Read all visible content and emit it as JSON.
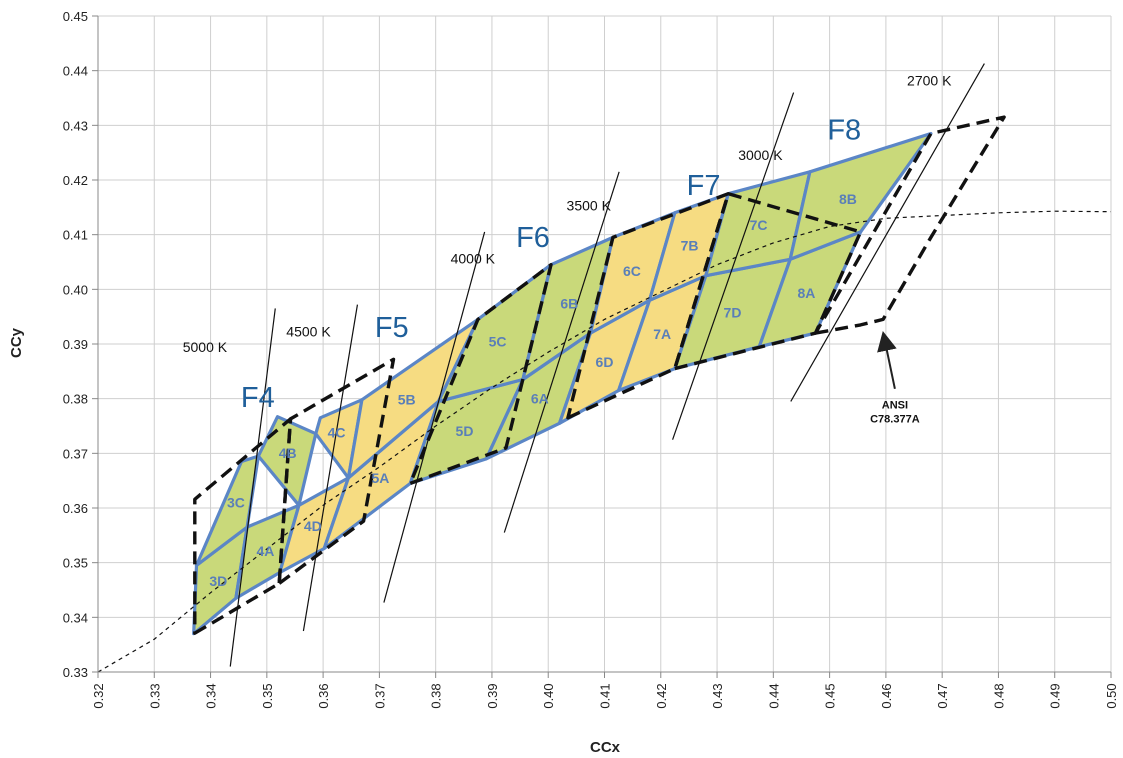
{
  "chart_data": {
    "type": "scatter",
    "title": "",
    "xlabel": "CCx",
    "ylabel": "CCy",
    "xlim": [
      0.32,
      0.5
    ],
    "ylim": [
      0.33,
      0.45
    ],
    "xticks": [
      "0.32",
      "0.33",
      "0.34",
      "0.35",
      "0.36",
      "0.37",
      "0.38",
      "0.39",
      "0.40",
      "0.41",
      "0.42",
      "0.43",
      "0.44",
      "0.45",
      "0.46",
      "0.47",
      "0.48",
      "0.49",
      "0.50"
    ],
    "yticks": [
      "0.33",
      "0.34",
      "0.35",
      "0.36",
      "0.37",
      "0.38",
      "0.39",
      "0.40",
      "0.41",
      "0.42",
      "0.43",
      "0.44",
      "0.45"
    ],
    "grid": true,
    "colors": {
      "green_fill": "#c9d97a",
      "yellow_fill": "#f6dc82",
      "bin_outline": "#5b86c6",
      "bin_text": "#5a7fb8",
      "group_text": "#1f5f9a",
      "ansi_outline": "#111111",
      "grid": "#cfcfcf"
    },
    "bins": [
      {
        "label": "3D",
        "fill": "green",
        "corners": [
          [
            0.337,
            0.337
          ],
          [
            0.3445,
            0.3435
          ],
          [
            0.3465,
            0.3565
          ],
          [
            0.3375,
            0.3495
          ]
        ]
      },
      {
        "label": "3C",
        "fill": "green",
        "corners": [
          [
            0.3375,
            0.3495
          ],
          [
            0.3465,
            0.3565
          ],
          [
            0.3485,
            0.3695
          ],
          [
            0.3455,
            0.3685
          ]
        ]
      },
      {
        "label": "4A",
        "fill": "green",
        "corners": [
          [
            0.3445,
            0.3435
          ],
          [
            0.3523,
            0.3482
          ],
          [
            0.3557,
            0.3605
          ],
          [
            0.3465,
            0.3565
          ]
        ]
      },
      {
        "label": "4B",
        "fill": "green",
        "corners": [
          [
            0.3485,
            0.3695
          ],
          [
            0.3557,
            0.3605
          ],
          [
            0.3587,
            0.3736
          ],
          [
            0.3519,
            0.3767
          ]
        ]
      },
      {
        "label": "4D",
        "fill": "yellow",
        "corners": [
          [
            0.3523,
            0.3482
          ],
          [
            0.3602,
            0.3526
          ],
          [
            0.3645,
            0.3655
          ],
          [
            0.3557,
            0.3605
          ]
        ]
      },
      {
        "label": "4C",
        "fill": "yellow",
        "corners": [
          [
            0.3587,
            0.3736
          ],
          [
            0.3645,
            0.3655
          ],
          [
            0.3669,
            0.3798
          ],
          [
            0.3595,
            0.3765
          ]
        ]
      },
      {
        "label": "5A",
        "fill": "yellow",
        "corners": [
          [
            0.3602,
            0.3526
          ],
          [
            0.3755,
            0.3645
          ],
          [
            0.3805,
            0.3795
          ],
          [
            0.3645,
            0.3655
          ]
        ]
      },
      {
        "label": "5B",
        "fill": "yellow",
        "corners": [
          [
            0.3645,
            0.3655
          ],
          [
            0.3805,
            0.3795
          ],
          [
            0.3875,
            0.3945
          ],
          [
            0.3669,
            0.3798
          ]
        ]
      },
      {
        "label": "5D",
        "fill": "green",
        "corners": [
          [
            0.3755,
            0.3645
          ],
          [
            0.389,
            0.369
          ],
          [
            0.3955,
            0.3835
          ],
          [
            0.3805,
            0.3795
          ]
        ]
      },
      {
        "label": "5C",
        "fill": "green",
        "corners": [
          [
            0.3805,
            0.3795
          ],
          [
            0.3955,
            0.3835
          ],
          [
            0.4005,
            0.4045
          ],
          [
            0.3875,
            0.3945
          ]
        ]
      },
      {
        "label": "6A",
        "fill": "green",
        "corners": [
          [
            0.389,
            0.369
          ],
          [
            0.402,
            0.3755
          ],
          [
            0.4075,
            0.392
          ],
          [
            0.3955,
            0.3835
          ]
        ]
      },
      {
        "label": "6B",
        "fill": "green",
        "corners": [
          [
            0.3955,
            0.3835
          ],
          [
            0.4075,
            0.392
          ],
          [
            0.4115,
            0.4095
          ],
          [
            0.4005,
            0.4045
          ]
        ]
      },
      {
        "label": "6D",
        "fill": "yellow",
        "corners": [
          [
            0.402,
            0.3755
          ],
          [
            0.4125,
            0.3815
          ],
          [
            0.418,
            0.398
          ],
          [
            0.4075,
            0.392
          ]
        ]
      },
      {
        "label": "6C",
        "fill": "yellow",
        "corners": [
          [
            0.4075,
            0.392
          ],
          [
            0.418,
            0.398
          ],
          [
            0.4225,
            0.414
          ],
          [
            0.4115,
            0.4095
          ]
        ]
      },
      {
        "label": "7A",
        "fill": "yellow",
        "corners": [
          [
            0.4125,
            0.3815
          ],
          [
            0.4225,
            0.3855
          ],
          [
            0.428,
            0.4025
          ],
          [
            0.418,
            0.398
          ]
        ]
      },
      {
        "label": "7B",
        "fill": "yellow",
        "corners": [
          [
            0.418,
            0.398
          ],
          [
            0.428,
            0.4025
          ],
          [
            0.432,
            0.4175
          ],
          [
            0.4225,
            0.414
          ]
        ]
      },
      {
        "label": "7D",
        "fill": "green",
        "corners": [
          [
            0.4225,
            0.3855
          ],
          [
            0.4375,
            0.3895
          ],
          [
            0.443,
            0.4055
          ],
          [
            0.428,
            0.4025
          ]
        ]
      },
      {
        "label": "7C",
        "fill": "green",
        "corners": [
          [
            0.428,
            0.4025
          ],
          [
            0.443,
            0.4055
          ],
          [
            0.4465,
            0.4215
          ],
          [
            0.432,
            0.4175
          ]
        ]
      },
      {
        "label": "8A",
        "fill": "green",
        "corners": [
          [
            0.4375,
            0.3895
          ],
          [
            0.4475,
            0.392
          ],
          [
            0.4555,
            0.4105
          ],
          [
            0.443,
            0.4055
          ]
        ]
      },
      {
        "label": "8B",
        "fill": "green",
        "corners": [
          [
            0.443,
            0.4055
          ],
          [
            0.4555,
            0.4105
          ],
          [
            0.468,
            0.4285
          ],
          [
            0.4465,
            0.4215
          ]
        ]
      }
    ],
    "groups": [
      {
        "label": "F4",
        "x": 0.3484,
        "y": 0.3785
      },
      {
        "label": "F5",
        "x": 0.3722,
        "y": 0.3913
      },
      {
        "label": "F6",
        "x": 0.3973,
        "y": 0.4077
      },
      {
        "label": "F7",
        "x": 0.4276,
        "y": 0.4173
      },
      {
        "label": "F8",
        "x": 0.4526,
        "y": 0.4274
      }
    ],
    "cct_lines": [
      {
        "label": "5000 K",
        "from": [
          0.3435,
          0.331
        ],
        "to": [
          0.3515,
          0.3965
        ],
        "label_x": 0.339,
        "label_y": 0.3885
      },
      {
        "label": "4500 K",
        "from": [
          0.3565,
          0.3375
        ],
        "to": [
          0.3661,
          0.3972
        ],
        "label_x": 0.3574,
        "label_y": 0.3914
      },
      {
        "label": "4000 K",
        "from": [
          0.3708,
          0.3427
        ],
        "to": [
          0.3887,
          0.4105
        ],
        "label_x": 0.3866,
        "label_y": 0.4047
      },
      {
        "label": "3500 K",
        "from": [
          0.3922,
          0.3555
        ],
        "to": [
          0.4126,
          0.4215
        ],
        "label_x": 0.4072,
        "label_y": 0.4144
      },
      {
        "label": "3000 K",
        "from": [
          0.4221,
          0.3725
        ],
        "to": [
          0.4436,
          0.436
        ],
        "label_x": 0.4377,
        "label_y": 0.4237
      },
      {
        "label": "2700 K",
        "from": [
          0.4431,
          0.3795
        ],
        "to": [
          0.4775,
          0.4413
        ],
        "label_x": 0.4677,
        "label_y": 0.4373
      }
    ],
    "ansi_regions": [
      {
        "name": "2700K",
        "points": [
          [
            0.4475,
            0.392
          ],
          [
            0.4555,
            0.3935
          ],
          [
            0.4595,
            0.3945
          ],
          [
            0.468,
            0.4095
          ],
          [
            0.481,
            0.4315
          ],
          [
            0.468,
            0.4285
          ]
        ]
      },
      {
        "name": "3000K",
        "points": [
          [
            0.4225,
            0.3855
          ],
          [
            0.4475,
            0.392
          ],
          [
            0.4555,
            0.4105
          ],
          [
            0.432,
            0.4175
          ]
        ]
      },
      {
        "name": "3500K",
        "points": [
          [
            0.4035,
            0.3765
          ],
          [
            0.4225,
            0.3855
          ],
          [
            0.432,
            0.4175
          ],
          [
            0.4115,
            0.4095
          ]
        ]
      },
      {
        "name": "4000K",
        "points": [
          [
            0.3755,
            0.3645
          ],
          [
            0.3925,
            0.371
          ],
          [
            0.4005,
            0.4045
          ],
          [
            0.3875,
            0.3945
          ]
        ]
      },
      {
        "name": "4500K",
        "points": [
          [
            0.3522,
            0.3462
          ],
          [
            0.3672,
            0.3576
          ],
          [
            0.3725,
            0.3872
          ],
          [
            0.3542,
            0.3763
          ]
        ]
      },
      {
        "name": "5000K",
        "points": [
          [
            0.3372,
            0.3371
          ],
          [
            0.3522,
            0.3462
          ],
          [
            0.3542,
            0.3763
          ],
          [
            0.3372,
            0.3616
          ]
        ]
      }
    ],
    "blackbody": [
      [
        0.32,
        0.33
      ],
      [
        0.33,
        0.336
      ],
      [
        0.34,
        0.3445
      ],
      [
        0.35,
        0.3525
      ],
      [
        0.36,
        0.3605
      ],
      [
        0.37,
        0.3675
      ],
      [
        0.38,
        0.375
      ],
      [
        0.39,
        0.382
      ],
      [
        0.4,
        0.3885
      ],
      [
        0.41,
        0.3945
      ],
      [
        0.42,
        0.3995
      ],
      [
        0.43,
        0.4045
      ],
      [
        0.44,
        0.4085
      ],
      [
        0.45,
        0.4115
      ],
      [
        0.46,
        0.413
      ],
      [
        0.47,
        0.4135
      ],
      [
        0.48,
        0.414
      ],
      [
        0.49,
        0.4143
      ],
      [
        0.5,
        0.4142
      ]
    ],
    "annotation": {
      "lines": [
        "ANSI",
        "C78.377A"
      ],
      "label_x": 0.4616,
      "label_y": 0.3782,
      "arrow_from": [
        0.4616,
        0.3818
      ],
      "arrow_to": [
        0.4596,
        0.3935
      ]
    }
  }
}
